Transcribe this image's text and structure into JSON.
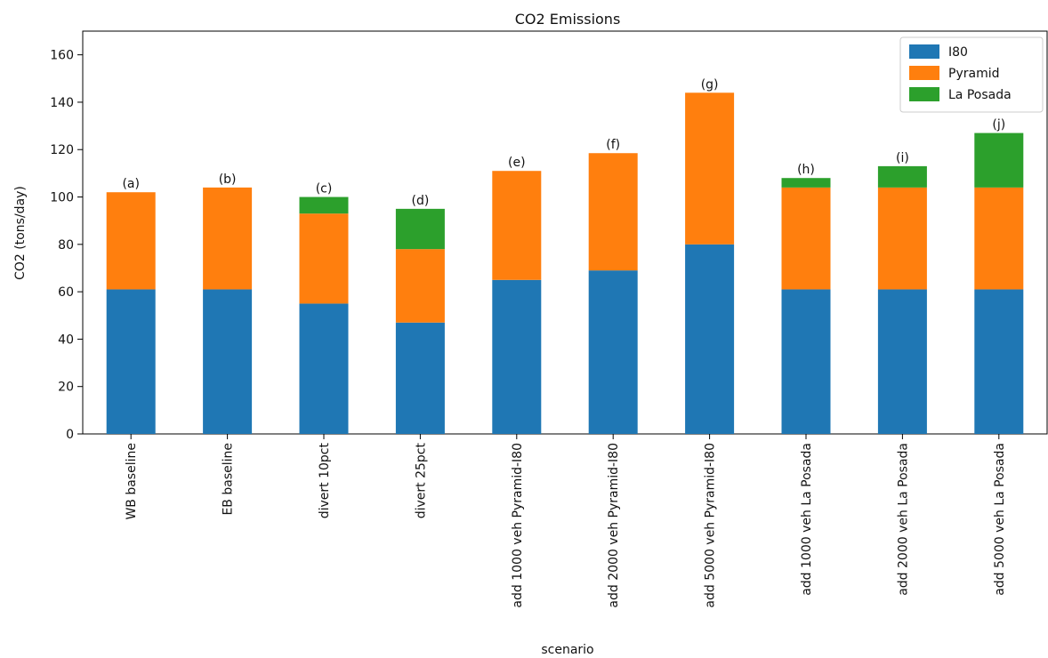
{
  "chart_data": {
    "type": "bar",
    "stacked": true,
    "title": "CO2 Emissions",
    "xlabel": "scenario",
    "ylabel": "CO2 (tons/day)",
    "ylim": [
      0,
      170
    ],
    "yticks": [
      0,
      20,
      40,
      60,
      80,
      100,
      120,
      140,
      160
    ],
    "categories": [
      "WB baseline",
      "EB baseline",
      "divert 10pct",
      "divert 25pct",
      "add 1000 veh Pyramid-I80",
      "add 2000 veh Pyramid-I80",
      "add 5000 veh Pyramid-I80",
      "add 1000 veh La Posada",
      "add 2000 veh La Posada",
      "add 5000 veh La Posada"
    ],
    "annotations": [
      "(a)",
      "(b)",
      "(c)",
      "(d)",
      "(e)",
      "(f)",
      "(g)",
      "(h)",
      "(i)",
      "(j)"
    ],
    "series": [
      {
        "name": "I80",
        "color": "#1f77b4",
        "values": [
          61,
          61,
          55,
          47,
          65,
          69,
          80,
          61,
          61,
          61
        ]
      },
      {
        "name": "Pyramid",
        "color": "#ff7f0e",
        "values": [
          41,
          43,
          38,
          31,
          46,
          49.5,
          64,
          43,
          43,
          43
        ]
      },
      {
        "name": "La Posada",
        "color": "#2ca02c",
        "values": [
          0,
          0,
          7,
          17,
          0,
          0,
          0,
          4,
          9,
          23
        ]
      }
    ],
    "legend": {
      "position": "top-right",
      "entries": [
        "I80",
        "Pyramid",
        "La Posada"
      ]
    },
    "grid": false
  }
}
